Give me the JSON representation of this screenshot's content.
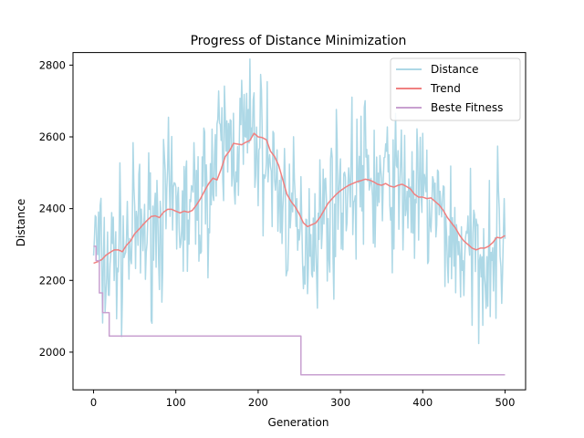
{
  "chart_data": {
    "type": "line",
    "title": "Progress of Distance Minimization",
    "xlabel": "Generation",
    "ylabel": "Distance",
    "xlim": [
      -25,
      525
    ],
    "ylim": [
      1895,
      2835
    ],
    "xticks": [
      0,
      100,
      200,
      300,
      400,
      500
    ],
    "yticks": [
      2000,
      2200,
      2400,
      2600,
      2800
    ],
    "grid": false,
    "legend_position": "top-right",
    "series": [
      {
        "name": "Distance",
        "color": "#add8e6",
        "style": "noisy",
        "x": [
          0,
          10,
          20,
          30,
          40,
          50,
          60,
          70,
          80,
          90,
          100,
          110,
          120,
          130,
          140,
          150,
          160,
          170,
          180,
          190,
          200,
          210,
          220,
          230,
          240,
          250,
          260,
          270,
          280,
          290,
          300,
          310,
          320,
          330,
          340,
          350,
          360,
          370,
          380,
          390,
          400,
          410,
          420,
          430,
          440,
          450,
          460,
          470,
          480,
          490,
          500
        ],
        "values": [
          2330,
          2230,
          2250,
          2280,
          2300,
          2330,
          2330,
          2350,
          2380,
          2400,
          2390,
          2380,
          2390,
          2430,
          2470,
          2530,
          2580,
          2580,
          2600,
          2600,
          2580,
          2550,
          2480,
          2420,
          2380,
          2310,
          2340,
          2350,
          2380,
          2410,
          2450,
          2460,
          2480,
          2490,
          2470,
          2460,
          2470,
          2460,
          2450,
          2430,
          2420,
          2410,
          2380,
          2340,
          2300,
          2280,
          2260,
          2280,
          2290,
          2300,
          2320
        ]
      },
      {
        "name": "Trend",
        "color": "#f08080",
        "x": [
          0,
          5,
          10,
          15,
          20,
          25,
          30,
          35,
          40,
          45,
          50,
          55,
          60,
          65,
          70,
          75,
          80,
          85,
          90,
          95,
          100,
          105,
          110,
          115,
          120,
          125,
          130,
          135,
          140,
          145,
          150,
          155,
          160,
          165,
          170,
          175,
          180,
          185,
          190,
          195,
          200,
          205,
          210,
          215,
          220,
          225,
          230,
          235,
          240,
          245,
          250,
          255,
          260,
          265,
          270,
          275,
          280,
          285,
          290,
          295,
          300,
          305,
          310,
          315,
          320,
          325,
          330,
          335,
          340,
          345,
          350,
          355,
          360,
          365,
          370,
          375,
          380,
          385,
          390,
          395,
          400,
          405,
          410,
          415,
          420,
          425,
          430,
          435,
          440,
          445,
          450,
          455,
          460,
          465,
          470,
          475,
          480,
          485,
          490,
          495,
          500
        ],
        "values": [
          2248,
          2252,
          2258,
          2270,
          2278,
          2285,
          2285,
          2280,
          2298,
          2310,
          2330,
          2342,
          2355,
          2367,
          2378,
          2380,
          2375,
          2390,
          2398,
          2398,
          2393,
          2388,
          2393,
          2390,
          2395,
          2410,
          2428,
          2450,
          2470,
          2485,
          2480,
          2510,
          2545,
          2560,
          2582,
          2580,
          2578,
          2585,
          2590,
          2610,
          2600,
          2598,
          2592,
          2560,
          2545,
          2520,
          2480,
          2440,
          2420,
          2405,
          2385,
          2360,
          2350,
          2355,
          2360,
          2375,
          2395,
          2415,
          2428,
          2440,
          2450,
          2458,
          2465,
          2470,
          2475,
          2478,
          2482,
          2480,
          2475,
          2468,
          2465,
          2470,
          2463,
          2460,
          2465,
          2468,
          2462,
          2455,
          2440,
          2432,
          2432,
          2428,
          2430,
          2420,
          2410,
          2395,
          2375,
          2360,
          2345,
          2325,
          2310,
          2300,
          2290,
          2285,
          2290,
          2290,
          2295,
          2305,
          2320,
          2318,
          2325
        ]
      },
      {
        "name": "Beste Fitness",
        "color": "#c8a0d0",
        "style": "steps",
        "x": [
          0,
          3,
          3,
          7,
          7,
          11,
          11,
          19,
          19,
          252,
          252,
          500
        ],
        "values": [
          2295,
          2295,
          2255,
          2255,
          2165,
          2165,
          2110,
          2110,
          2045,
          2045,
          1937,
          1937
        ]
      }
    ]
  }
}
